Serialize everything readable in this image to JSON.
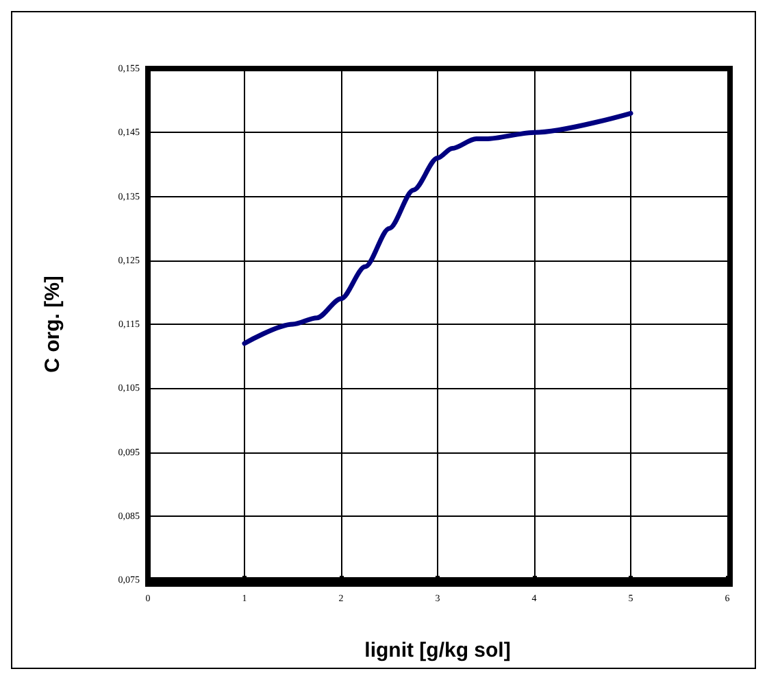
{
  "chart_data": {
    "type": "line",
    "xlabel": "lignit [g/kg sol]",
    "ylabel": "C org. [%]",
    "x": [
      1,
      1.5,
      1.75,
      2,
      2.25,
      2.5,
      2.75,
      3,
      3.15,
      3.4,
      3.5,
      4,
      5
    ],
    "series": [
      {
        "color": "#000080",
        "values": [
          0.112,
          0.115,
          0.116,
          0.119,
          0.124,
          0.13,
          0.136,
          0.141,
          0.1425,
          0.144,
          0.144,
          0.145,
          0.148
        ]
      }
    ],
    "xlim": [
      0,
      6
    ],
    "xticks": [
      0,
      1,
      2,
      3,
      4,
      5,
      6
    ],
    "ylim": [
      0.075,
      0.155
    ],
    "yticks": [
      {
        "value": 0.075,
        "label": "0,075"
      },
      {
        "value": 0.085,
        "label": "0,085"
      },
      {
        "value": 0.095,
        "label": "0,095"
      },
      {
        "value": 0.105,
        "label": "0,105"
      },
      {
        "value": 0.115,
        "label": "0,115"
      },
      {
        "value": 0.125,
        "label": "0,125"
      },
      {
        "value": 0.135,
        "label": "0,135"
      },
      {
        "value": 0.145,
        "label": "0,145"
      },
      {
        "value": 0.155,
        "label": "0,155"
      }
    ],
    "grid": true,
    "marker": "none",
    "line_style": "solid"
  }
}
